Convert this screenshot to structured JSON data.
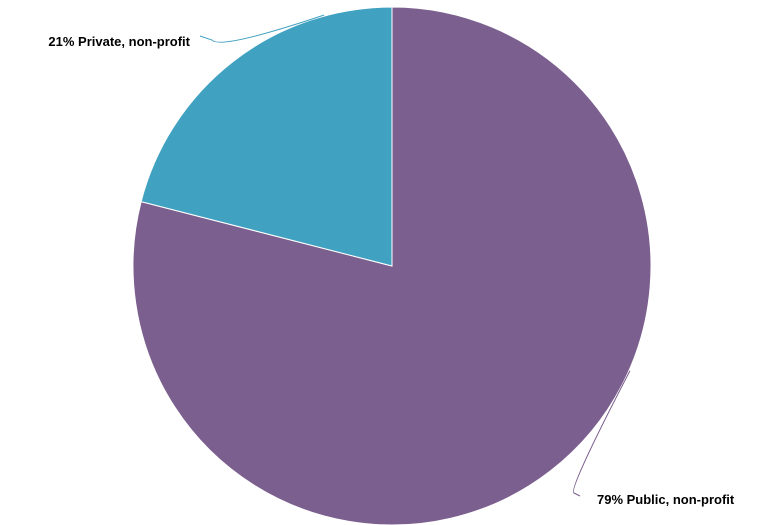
{
  "chart_data": {
    "type": "pie",
    "start_angle_deg": 0,
    "direction": "clockwise",
    "slices": [
      {
        "label": "Public, non-profit",
        "value": 79,
        "display": "79% Public, non-profit",
        "color": "#7b5f8e"
      },
      {
        "label": "Private, non-profit",
        "value": 21,
        "display": "21% Private, non-profit",
        "color": "#40a1c1"
      }
    ]
  }
}
